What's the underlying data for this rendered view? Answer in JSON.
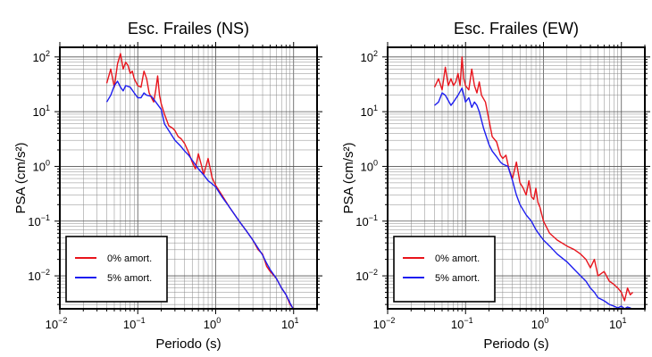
{
  "chart_data": [
    {
      "type": "line",
      "title": "Esc. Frailes (NS)",
      "xlabel": "Periodo (s)",
      "ylabel": "PSA (cm/s²)",
      "xscale": "log",
      "yscale": "log",
      "xlim": [
        0.01,
        20
      ],
      "ylim": [
        0.0025,
        150
      ],
      "grid": true,
      "legend_position": "bottom-left",
      "x_ticks": [
        {
          "value": 0.01,
          "base": "10",
          "exp": "−2"
        },
        {
          "value": 0.1,
          "base": "10",
          "exp": "−1"
        },
        {
          "value": 1,
          "base": "10",
          "exp": "0"
        },
        {
          "value": 10,
          "base": "10",
          "exp": "1"
        }
      ],
      "y_ticks": [
        {
          "value": 0.01,
          "base": "10",
          "exp": "−2"
        },
        {
          "value": 0.1,
          "base": "10",
          "exp": "−1"
        },
        {
          "value": 1,
          "base": "10",
          "exp": "0"
        },
        {
          "value": 10,
          "base": "10",
          "exp": "1"
        },
        {
          "value": 100,
          "base": "10",
          "exp": "2"
        }
      ],
      "series": [
        {
          "name": "0% amort.",
          "color": "#e8141c",
          "x": [
            0.04,
            0.045,
            0.05,
            0.055,
            0.06,
            0.065,
            0.07,
            0.075,
            0.08,
            0.085,
            0.09,
            0.1,
            0.11,
            0.12,
            0.13,
            0.14,
            0.15,
            0.16,
            0.17,
            0.18,
            0.19,
            0.2,
            0.22,
            0.25,
            0.28,
            0.3,
            0.33,
            0.36,
            0.4,
            0.45,
            0.5,
            0.55,
            0.6,
            0.65,
            0.7,
            0.8,
            0.9,
            1.0,
            1.2,
            1.5,
            2.0,
            2.5,
            3.0,
            3.5,
            4.0,
            4.5,
            5.0,
            6.0,
            7.0,
            8.0,
            9.0,
            10.0
          ],
          "y": [
            33,
            60,
            28,
            75,
            115,
            60,
            80,
            70,
            50,
            55,
            40,
            30,
            28,
            55,
            40,
            22,
            18,
            15,
            25,
            45,
            20,
            14,
            9,
            5.5,
            5,
            4.5,
            3.5,
            3.2,
            2.6,
            1.8,
            1.2,
            0.9,
            1.7,
            1.1,
            0.7,
            1.4,
            0.62,
            0.45,
            0.3,
            0.18,
            0.1,
            0.065,
            0.045,
            0.03,
            0.025,
            0.015,
            0.012,
            0.009,
            0.006,
            0.0045,
            0.003,
            0.0025
          ]
        },
        {
          "name": "5% amort.",
          "color": "#1d1df0",
          "x": [
            0.04,
            0.045,
            0.05,
            0.055,
            0.06,
            0.065,
            0.07,
            0.08,
            0.09,
            0.1,
            0.11,
            0.12,
            0.13,
            0.15,
            0.17,
            0.2,
            0.22,
            0.25,
            0.28,
            0.3,
            0.35,
            0.4,
            0.45,
            0.5,
            0.6,
            0.7,
            0.8,
            0.9,
            1.0,
            1.2,
            1.5,
            2.0,
            2.5,
            3.0,
            3.5,
            4.0,
            4.5,
            5.0,
            6.0,
            7.0,
            8.0,
            9.0,
            10.0
          ],
          "y": [
            15,
            20,
            30,
            36,
            28,
            24,
            30,
            28,
            22,
            18,
            18,
            22,
            20,
            19,
            15,
            11,
            6,
            4.5,
            3.5,
            3,
            2.4,
            1.9,
            1.6,
            1.3,
            0.9,
            0.7,
            0.55,
            0.48,
            0.42,
            0.28,
            0.18,
            0.1,
            0.065,
            0.045,
            0.032,
            0.024,
            0.017,
            0.013,
            0.009,
            0.006,
            0.0045,
            0.0032,
            0.0024
          ]
        }
      ]
    },
    {
      "type": "line",
      "title": "Esc. Frailes (EW)",
      "xlabel": "Periodo (s)",
      "ylabel": "PSA (cm/s²)",
      "xscale": "log",
      "yscale": "log",
      "xlim": [
        0.01,
        20
      ],
      "ylim": [
        0.0025,
        150
      ],
      "grid": true,
      "legend_position": "bottom-left",
      "x_ticks": [
        {
          "value": 0.01,
          "base": "10",
          "exp": "−2"
        },
        {
          "value": 0.1,
          "base": "10",
          "exp": "−1"
        },
        {
          "value": 1,
          "base": "10",
          "exp": "0"
        },
        {
          "value": 10,
          "base": "10",
          "exp": "1"
        }
      ],
      "y_ticks": [
        {
          "value": 0.01,
          "base": "10",
          "exp": "−2"
        },
        {
          "value": 0.1,
          "base": "10",
          "exp": "−1"
        },
        {
          "value": 1,
          "base": "10",
          "exp": "0"
        },
        {
          "value": 10,
          "base": "10",
          "exp": "1"
        },
        {
          "value": 100,
          "base": "10",
          "exp": "2"
        }
      ],
      "series": [
        {
          "name": "0% amort.",
          "color": "#e8141c",
          "x": [
            0.04,
            0.045,
            0.05,
            0.055,
            0.06,
            0.065,
            0.07,
            0.075,
            0.08,
            0.085,
            0.09,
            0.095,
            0.1,
            0.11,
            0.12,
            0.13,
            0.14,
            0.15,
            0.16,
            0.18,
            0.2,
            0.22,
            0.25,
            0.28,
            0.3,
            0.33,
            0.36,
            0.4,
            0.45,
            0.5,
            0.55,
            0.6,
            0.65,
            0.7,
            0.75,
            0.8,
            0.85,
            0.9,
            1.0,
            1.2,
            1.5,
            2.0,
            2.5,
            3.0,
            3.5,
            4.0,
            4.5,
            5.0,
            6.0,
            7.0,
            8.0,
            9.0,
            10.0,
            11.0,
            12.0,
            13.0,
            14.0
          ],
          "y": [
            28,
            40,
            25,
            65,
            30,
            40,
            30,
            35,
            50,
            30,
            100,
            40,
            30,
            25,
            60,
            30,
            22,
            35,
            20,
            15,
            7,
            3.5,
            2.8,
            1.6,
            1.4,
            1.6,
            0.9,
            0.6,
            1.2,
            0.5,
            0.4,
            0.3,
            0.55,
            0.28,
            0.25,
            0.4,
            0.22,
            0.18,
            0.1,
            0.06,
            0.045,
            0.035,
            0.03,
            0.025,
            0.02,
            0.014,
            0.02,
            0.01,
            0.012,
            0.008,
            0.007,
            0.006,
            0.005,
            0.0035,
            0.006,
            0.0045,
            0.005
          ]
        },
        {
          "name": "5% amort.",
          "color": "#1d1df0",
          "x": [
            0.04,
            0.045,
            0.05,
            0.055,
            0.06,
            0.065,
            0.07,
            0.08,
            0.09,
            0.1,
            0.11,
            0.12,
            0.13,
            0.14,
            0.15,
            0.17,
            0.2,
            0.22,
            0.25,
            0.28,
            0.3,
            0.35,
            0.4,
            0.45,
            0.5,
            0.6,
            0.7,
            0.8,
            0.9,
            1.0,
            1.2,
            1.5,
            2.0,
            2.5,
            3.0,
            3.5,
            4.0,
            4.5,
            5.0,
            6.0,
            7.0,
            8.0,
            9.0,
            10.0,
            11.0,
            12.0,
            13.0,
            14.0
          ],
          "y": [
            13,
            15,
            22,
            20,
            16,
            13,
            15,
            20,
            27,
            15,
            18,
            12,
            15,
            13,
            10,
            5,
            2.5,
            1.9,
            1.5,
            1.2,
            1.1,
            1.0,
            0.55,
            0.3,
            0.2,
            0.13,
            0.1,
            0.07,
            0.055,
            0.045,
            0.035,
            0.025,
            0.018,
            0.013,
            0.01,
            0.008,
            0.006,
            0.005,
            0.004,
            0.0035,
            0.003,
            0.0028,
            0.0026,
            0.0028,
            0.0025,
            0.0027,
            0.0026,
            0.0024
          ]
        }
      ]
    }
  ]
}
